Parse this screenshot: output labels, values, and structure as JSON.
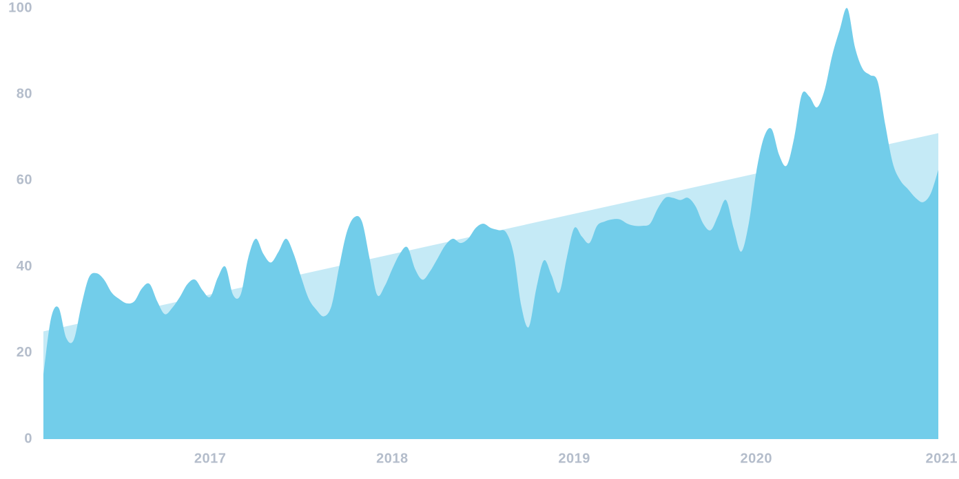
{
  "chart_data": {
    "type": "area",
    "categories": [
      null,
      null,
      null,
      null,
      null,
      null,
      null,
      null,
      null,
      null,
      null,
      null,
      null,
      null,
      null,
      null,
      null,
      null,
      null,
      null,
      null,
      null,
      "2017",
      null,
      null,
      null,
      null,
      null,
      null,
      null,
      null,
      null,
      null,
      null,
      null,
      null,
      null,
      null,
      null,
      null,
      null,
      null,
      null,
      null,
      null,
      null,
      "2018",
      null,
      null,
      null,
      null,
      null,
      null,
      null,
      null,
      null,
      null,
      null,
      null,
      null,
      null,
      null,
      null,
      null,
      null,
      null,
      null,
      null,
      null,
      null,
      "2019",
      null,
      null,
      null,
      null,
      null,
      null,
      null,
      null,
      null,
      null,
      null,
      null,
      null,
      null,
      null,
      null,
      null,
      null,
      null,
      null,
      null,
      null,
      null,
      "2020",
      null,
      null,
      null,
      null,
      null,
      null,
      null,
      null,
      null,
      null,
      null,
      null,
      null,
      null,
      null,
      null,
      null,
      null,
      null,
      null,
      null,
      null,
      null,
      "2021"
    ],
    "values": [
      15,
      28,
      30.5,
      23.5,
      23,
      31,
      37.5,
      38.5,
      37,
      34,
      32.5,
      31.5,
      32,
      35,
      36,
      32,
      29,
      30.5,
      33,
      36,
      37,
      34.5,
      33,
      37.5,
      40,
      33.5,
      33.5,
      42,
      46.5,
      43,
      41,
      43.5,
      46.5,
      43,
      37.5,
      32.5,
      30,
      28.5,
      31,
      40,
      48,
      51.5,
      50.5,
      42,
      33.5,
      35.5,
      39.5,
      43,
      44.5,
      39.5,
      37,
      39,
      42,
      45,
      46.5,
      45.5,
      46.5,
      49,
      50,
      49,
      48.5,
      48,
      43,
      31,
      26,
      35,
      41.5,
      38,
      34,
      42,
      49,
      47,
      45.5,
      49.5,
      50.5,
      51,
      51,
      50,
      49.5,
      49.5,
      50,
      53.5,
      56,
      56,
      55.5,
      56,
      54,
      50,
      48.5,
      52,
      55.5,
      49,
      43.5,
      50,
      62,
      70,
      72,
      66,
      63.5,
      70,
      80,
      79.5,
      77,
      81,
      89,
      95,
      100,
      91,
      86,
      84.5,
      83,
      73,
      64,
      60,
      58,
      56,
      55,
      57,
      62.5
    ],
    "color": "#72cdea",
    "trend": [
      25,
      71
    ],
    "trend_color": "#c5eaf6",
    "ylim": [
      0,
      100
    ],
    "yticks": [
      0,
      20,
      40,
      60,
      80,
      100
    ],
    "grid": false
  }
}
